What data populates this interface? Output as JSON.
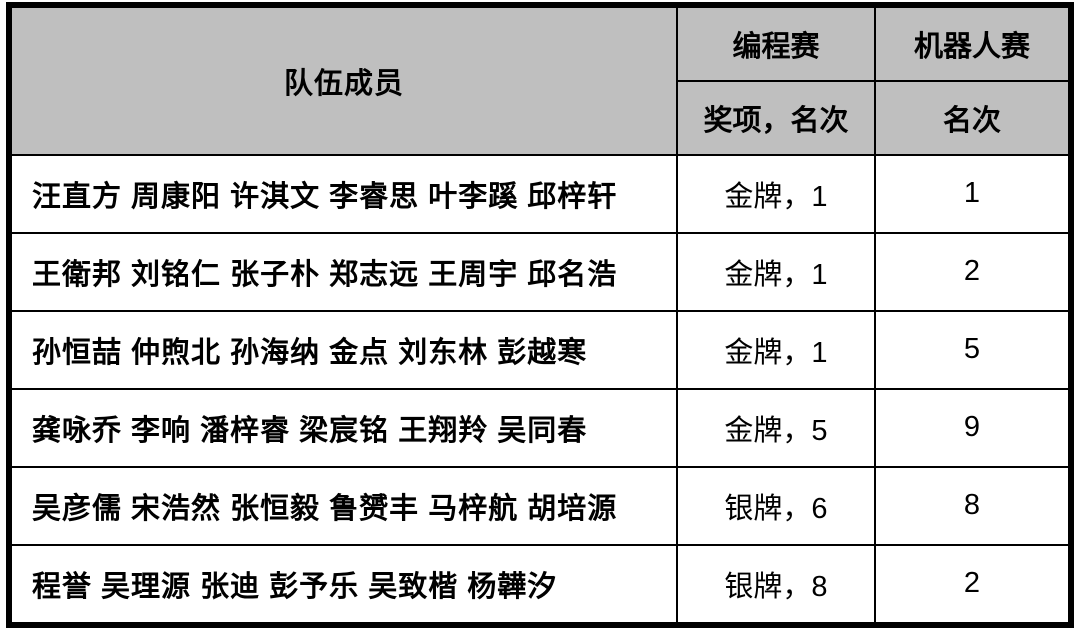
{
  "table": {
    "header": {
      "members": "队伍成员",
      "programming": "编程赛",
      "robot": "机器人赛",
      "prog_sub": "奖项，名次",
      "robot_sub": "名次"
    },
    "rows": [
      {
        "members": "汪直方 周康阳 许淇文 李睿思 叶李蹊 邱梓轩",
        "prog": "金牌，1",
        "robot": "1"
      },
      {
        "members": "王衛邦 刘铭仁 张子朴 郑志远 王周宇 邱名浩",
        "prog": "金牌，1",
        "robot": "2"
      },
      {
        "members": "孙恒喆 仲煦北 孙海纳 金点 刘东林 彭越寒",
        "prog": "金牌，1",
        "robot": "5"
      },
      {
        "members": "龚咏乔 李响 潘梓睿 梁宸铭 王翔羚 吴同春",
        "prog": "金牌，5",
        "robot": "9"
      },
      {
        "members": "吴彦儒 宋浩然 张恒毅 鲁赟丰 马梓航 胡培源",
        "prog": "银牌，6",
        "robot": "8"
      },
      {
        "members": "程誉 吴理源 张迪 彭予乐 吴致楷 杨韡汐",
        "prog": "银牌，8",
        "robot": "2"
      }
    ],
    "colors": {
      "header_bg": "#bfbfbf",
      "row_bg": "#ffffff",
      "border": "#000000",
      "text": "#000000"
    },
    "fonts": {
      "cell_fontsize": 29,
      "cell_fontweight": "bold"
    }
  }
}
